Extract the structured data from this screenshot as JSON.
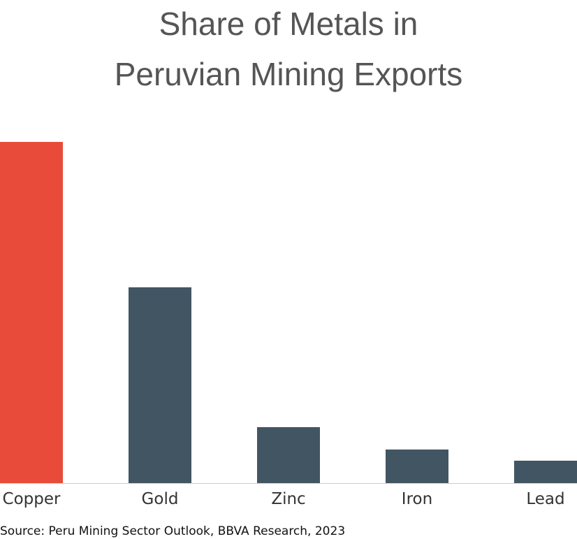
{
  "chart_data": {
    "type": "bar",
    "title": [
      "Share of Metals in",
      "Peruvian Mining Exports"
    ],
    "categories": [
      "Copper",
      "Gold",
      "Zinc",
      "Iron",
      "Lead"
    ],
    "values": [
      61,
      35,
      10,
      6,
      4
    ],
    "colors": [
      "#e84b3a",
      "#425563",
      "#425563",
      "#425563",
      "#425563"
    ],
    "ylim": [
      0,
      61
    ],
    "source": "Source: Peru Mining Sector Outlook, BBVA Research, 2023"
  }
}
